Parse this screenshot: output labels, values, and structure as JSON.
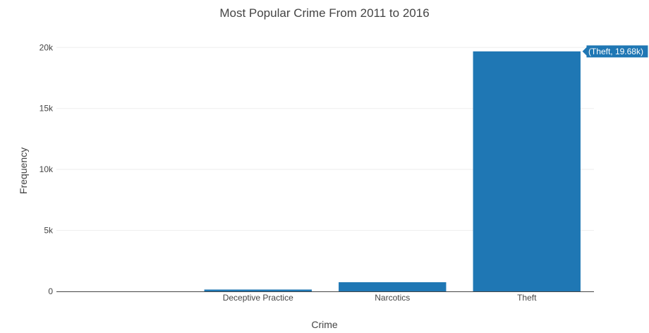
{
  "chart_data": {
    "type": "bar",
    "title": "Most Popular Crime From 2011 to 2016",
    "xlabel": "Crime",
    "ylabel": "Frequency",
    "categories": [
      "",
      "Deceptive Practice",
      "Narcotics",
      "Theft"
    ],
    "values": [
      0,
      150,
      750,
      19680
    ],
    "ylim": [
      0,
      21000
    ],
    "yticks": [
      0,
      5000,
      10000,
      15000,
      20000
    ],
    "ytick_labels": [
      "0",
      "5k",
      "10k",
      "15k",
      "20k"
    ],
    "bar_color": "#1f77b4",
    "grid": true,
    "hover_label": "(Theft, 19.68k)"
  }
}
